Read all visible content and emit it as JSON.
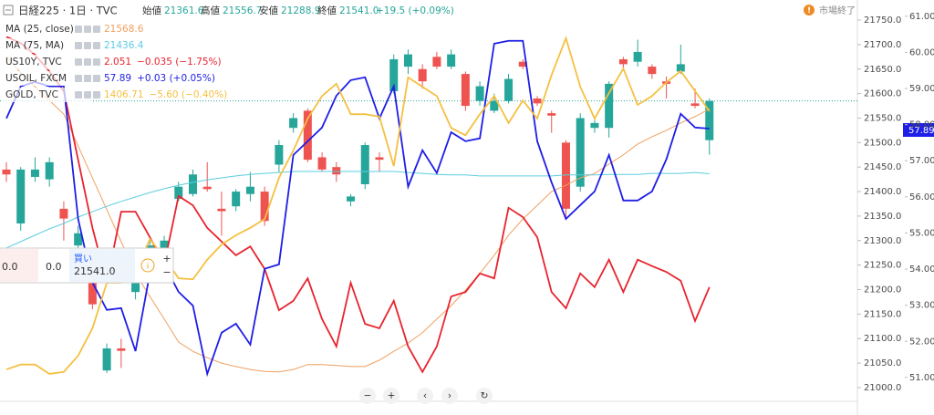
{
  "header": {
    "symbol": "日経225 · 1日 · TVC",
    "ohlc": [
      {
        "label": "始値",
        "value": "21361.6"
      },
      {
        "label": "高値",
        "value": "21556.7"
      },
      {
        "label": "安値",
        "value": "21288.9"
      },
      {
        "label": "終値",
        "value": "21541.0"
      }
    ],
    "change": "+19.5 (+0.09%)",
    "status": "市場終了"
  },
  "trade_panel": {
    "sell": "0.0",
    "spread": "0.0",
    "buy": "買い",
    "price": "21541.0"
  },
  "price_badge": "57.89",
  "chart_data": {
    "type": "candlestick",
    "categories": [
      null,
      null,
      null,
      null,
      null,
      null,
      null,
      null,
      null,
      null,
      null,
      null,
      null,
      null,
      null,
      null,
      null,
      null,
      null,
      null,
      null,
      null,
      null,
      null,
      null,
      null,
      null,
      null,
      null,
      null,
      null,
      null,
      null,
      null,
      null,
      null,
      null,
      null,
      null,
      null,
      null,
      null,
      null,
      null,
      null,
      null,
      null,
      null,
      null,
      null
    ],
    "open": [
      21445,
      21335,
      21430,
      21425,
      21365,
      21290,
      21235,
      21035,
      21080,
      21195,
      21260,
      21285,
      21385,
      21395,
      21410,
      21365,
      21370,
      21395,
      21400,
      21455,
      21530,
      21565,
      21470,
      21450,
      21380,
      21415,
      21470,
      21605,
      21655,
      21650,
      21675,
      21655,
      21640,
      21585,
      21565,
      21585,
      21665,
      21590,
      21560,
      21500,
      21410,
      21530,
      21530,
      21670,
      21665,
      21655,
      21625,
      21645,
      21580,
      21505
    ],
    "high": [
      21460,
      21450,
      21470,
      21470,
      21380,
      21330,
      21245,
      21090,
      21100,
      21240,
      21300,
      21310,
      21420,
      21445,
      21460,
      21400,
      21405,
      21440,
      21410,
      21505,
      21560,
      21570,
      21480,
      21460,
      21395,
      21500,
      21480,
      21680,
      21690,
      21660,
      21685,
      21690,
      21645,
      21625,
      21600,
      21640,
      21670,
      21595,
      21565,
      21505,
      21560,
      21550,
      21625,
      21675,
      21710,
      21660,
      21635,
      21700,
      21610,
      21590
    ],
    "low": [
      21420,
      21320,
      21420,
      21410,
      21300,
      21270,
      21160,
      21030,
      21040,
      21180,
      21250,
      21270,
      21380,
      21390,
      21400,
      21310,
      21360,
      21380,
      21330,
      21440,
      21520,
      21460,
      21440,
      21420,
      21370,
      21405,
      21440,
      21600,
      21640,
      21610,
      21650,
      21650,
      21565,
      21575,
      21560,
      21580,
      21650,
      21575,
      21520,
      21345,
      21400,
      21520,
      21510,
      21650,
      21655,
      21630,
      21590,
      21640,
      21570,
      21475
    ],
    "close": [
      21435,
      21445,
      21445,
      21460,
      21345,
      21315,
      21170,
      21080,
      21075,
      21230,
      21290,
      21300,
      21410,
      21435,
      21405,
      21360,
      21400,
      21410,
      21340,
      21495,
      21550,
      21465,
      21445,
      21435,
      21390,
      21495,
      21465,
      21670,
      21680,
      21625,
      21655,
      21680,
      21575,
      21615,
      21585,
      21630,
      21655,
      21580,
      21555,
      21365,
      21550,
      21540,
      21620,
      21660,
      21685,
      21640,
      21620,
      21660,
      21575,
      21585
    ],
    "up_color": "#26a69a",
    "down_color": "#ef5350",
    "series": [
      {
        "name": "MA (25, close)",
        "color": "#f0a060",
        "legend_values": [
          "21568.6"
        ],
        "values": [
          21676,
          21642,
          21614,
          21586,
          21558,
          21493,
          21428,
          21363,
          21298,
          21233,
          21186,
          21140,
          21093,
          21074,
          21061,
          21050,
          21043,
          21037,
          21033,
          21032,
          21037,
          21047,
          21047,
          21045,
          21043,
          21043,
          21056,
          21074,
          21091,
          21112,
          21140,
          21167,
          21199,
          21233,
          21270,
          21311,
          21344,
          21372,
          21400,
          21413,
          21428,
          21437,
          21456,
          21475,
          21497,
          21512,
          21525,
          21540,
          21553,
          21568.6
        ]
      },
      {
        "name": "MA (75, MA)",
        "color": "#5ccde0",
        "legend_values": [
          "21436.4"
        ],
        "values": [
          21285,
          21298,
          21311,
          21324,
          21335,
          21348,
          21359,
          21370,
          21380,
          21389,
          21398,
          21406,
          21413,
          21419,
          21424,
          21428,
          21432,
          21435,
          21437,
          21439,
          21441,
          21441,
          21441,
          21441,
          21441,
          21441,
          21441,
          21441,
          21439,
          21437,
          21435,
          21434,
          21434,
          21432,
          21432,
          21432,
          21432,
          21432,
          21432,
          21434,
          21434,
          21434,
          21435,
          21435,
          21435,
          21437,
          21437,
          21437,
          21439,
          21436.4
        ]
      },
      {
        "name": "US10Y, TVC",
        "color": "#e8232e",
        "legend_values": [
          "2.051",
          "−0.035 (−1.75%)"
        ],
        "values": [
          21716,
          21703,
          21679,
          21645,
          21605,
          21465,
          21326,
          21214,
          21359,
          21359,
          21307,
          21251,
          21391,
          21372,
          21326,
          21298,
          21270,
          21288,
          21242,
          21158,
          21177,
          21223,
          21140,
          21084,
          21214,
          21130,
          21121,
          21177,
          21084,
          21032,
          21084,
          21186,
          21195,
          21233,
          21223,
          21367,
          21348,
          21307,
          21195,
          21162,
          21233,
          21205,
          21261,
          21195,
          21261,
          21248,
          21236,
          21218,
          21136,
          21205
        ]
      },
      {
        "name": "USOIL, FXCM",
        "color": "#1e1ee6",
        "axis": "y2",
        "legend_values": [
          "57.89",
          "+0.03 (+0.05%)"
        ],
        "values": [
          58.17,
          59.06,
          59.18,
          59.06,
          59.06,
          55.39,
          53.63,
          52.87,
          52.92,
          51.73,
          53.88,
          54.13,
          53.37,
          52.99,
          51.1,
          52.24,
          52.49,
          51.91,
          54.01,
          54.13,
          57.16,
          57.54,
          57.92,
          58.8,
          59.23,
          59.31,
          58.17,
          59.06,
          56.28,
          57.29,
          56.66,
          57.79,
          57.54,
          57.62,
          60.24,
          60.32,
          60.32,
          57.54,
          56.4,
          55.39,
          55.77,
          56.15,
          57.16,
          55.9,
          55.9,
          56.15,
          57.04,
          58.3,
          57.92,
          57.89
        ]
      },
      {
        "name": "GOLD, TVC",
        "color": "#f5c040",
        "legend_values": [
          "1406.71",
          "−5.60 (−0.40%)"
        ],
        "values": [
          21037,
          21047,
          21047,
          21028,
          21032,
          21065,
          21121,
          21214,
          21214,
          21233,
          21303,
          21266,
          21223,
          21221,
          21261,
          21292,
          21311,
          21326,
          21344,
          21428,
          21484,
          21549,
          21595,
          21620,
          21558,
          21558,
          21553,
          21452,
          21633,
          21614,
          21595,
          21530,
          21515,
          21558,
          21595,
          21540,
          21586,
          21549,
          21638,
          21713,
          21614,
          21549,
          21601,
          21651,
          21577,
          21595,
          21623,
          21646,
          21605,
          21564
        ]
      }
    ],
    "ylim": [
      20972,
      21791
    ],
    "yticks": [
      {
        "value": 21000,
        "label": "21000.0"
      },
      {
        "value": 21050,
        "label": "21050.0"
      },
      {
        "value": 21100,
        "label": "21100.0"
      },
      {
        "value": 21150,
        "label": "21150.0"
      },
      {
        "value": 21200,
        "label": "21200.0"
      },
      {
        "value": 21250,
        "label": "21250.0"
      },
      {
        "value": 21300,
        "label": "21300.0"
      },
      {
        "value": 21350,
        "label": "21350.0"
      },
      {
        "value": 21400,
        "label": "21400.0"
      },
      {
        "value": 21450,
        "label": "21450.0"
      },
      {
        "value": 21500,
        "label": "21500.0"
      },
      {
        "value": 21550,
        "label": "21550.0"
      },
      {
        "value": 21600,
        "label": "21600.0"
      },
      {
        "value": 21650,
        "label": "21650.0"
      },
      {
        "value": 21700,
        "label": "21700.0"
      },
      {
        "value": 21750,
        "label": "21750.0"
      }
    ],
    "y2lim": [
      50.34,
      61.45
    ],
    "y2ticks": [
      {
        "value": 51,
        "label": "51.00"
      },
      {
        "value": 52,
        "label": "52.00"
      },
      {
        "value": 53,
        "label": "53.00"
      },
      {
        "value": 54,
        "label": "54.00"
      },
      {
        "value": 55,
        "label": "55.00"
      },
      {
        "value": 56,
        "label": "56.00"
      },
      {
        "value": 57,
        "label": "57.00"
      },
      {
        "value": 58,
        "label": "58.00"
      },
      {
        "value": 59,
        "label": "59.00"
      },
      {
        "value": 60,
        "label": "60.00"
      },
      {
        "value": 61,
        "label": "61.00"
      }
    ],
    "grid": false
  }
}
